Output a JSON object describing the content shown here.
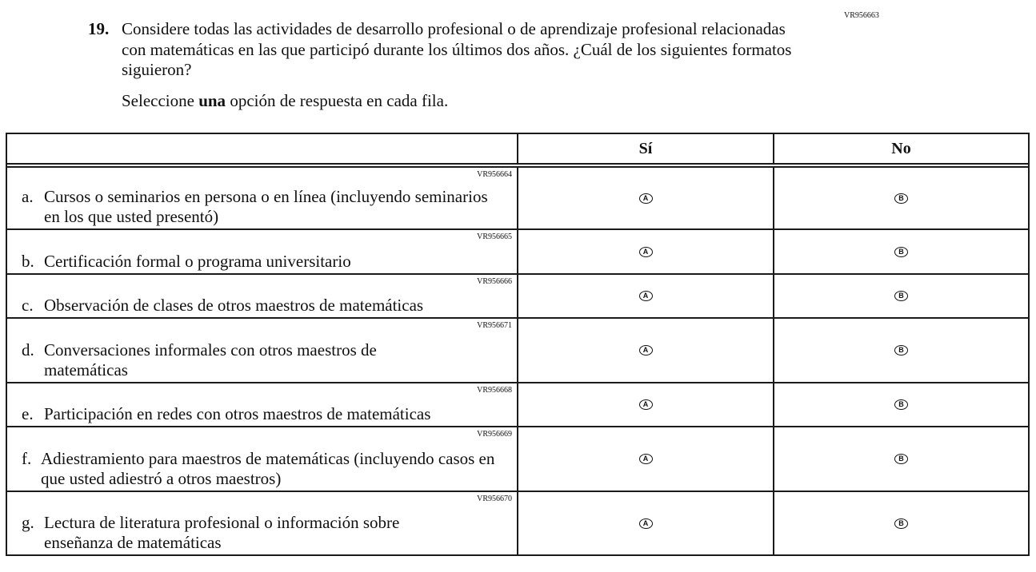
{
  "question": {
    "number": "19.",
    "code": "VR956663",
    "text": "Considere todas las actividades de desarrollo profesional o de aprendizaje profesional relacionadas con matemáticas en las que participó durante los últimos dos años. ¿Cuál de los siguientes formatos siguieron?",
    "instruction_pre": "Seleccione ",
    "instruction_bold": "una",
    "instruction_post": " opción de respuesta en cada fila."
  },
  "table": {
    "columns": [
      "",
      "Sí",
      "No"
    ],
    "option_labels": [
      "A",
      "B"
    ],
    "rows": [
      {
        "letter": "a.",
        "code": "VR956664",
        "text": "Cursos o seminarios en persona o en línea (incluyendo seminarios en los que usted presentó)"
      },
      {
        "letter": "b.",
        "code": "VR956665",
        "text": "Certificación formal o programa universitario"
      },
      {
        "letter": "c.",
        "code": "VR956666",
        "text": "Observación de clases de otros maestros de matemáticas"
      },
      {
        "letter": "d.",
        "code": "VR956671",
        "text": "Conversaciones informales con otros maestros de matemáticas"
      },
      {
        "letter": "e.",
        "code": "VR956668",
        "text": "Participación en redes con otros maestros de matemáticas"
      },
      {
        "letter": "f.",
        "code": "VR956669",
        "text": "Adiestramiento para maestros de matemáticas (incluyendo casos en que usted adiestró a otros maestros)"
      },
      {
        "letter": "g.",
        "code": "VR956670",
        "text": "Lectura de literatura profesional o información sobre enseñanza de matemáticas"
      }
    ]
  }
}
